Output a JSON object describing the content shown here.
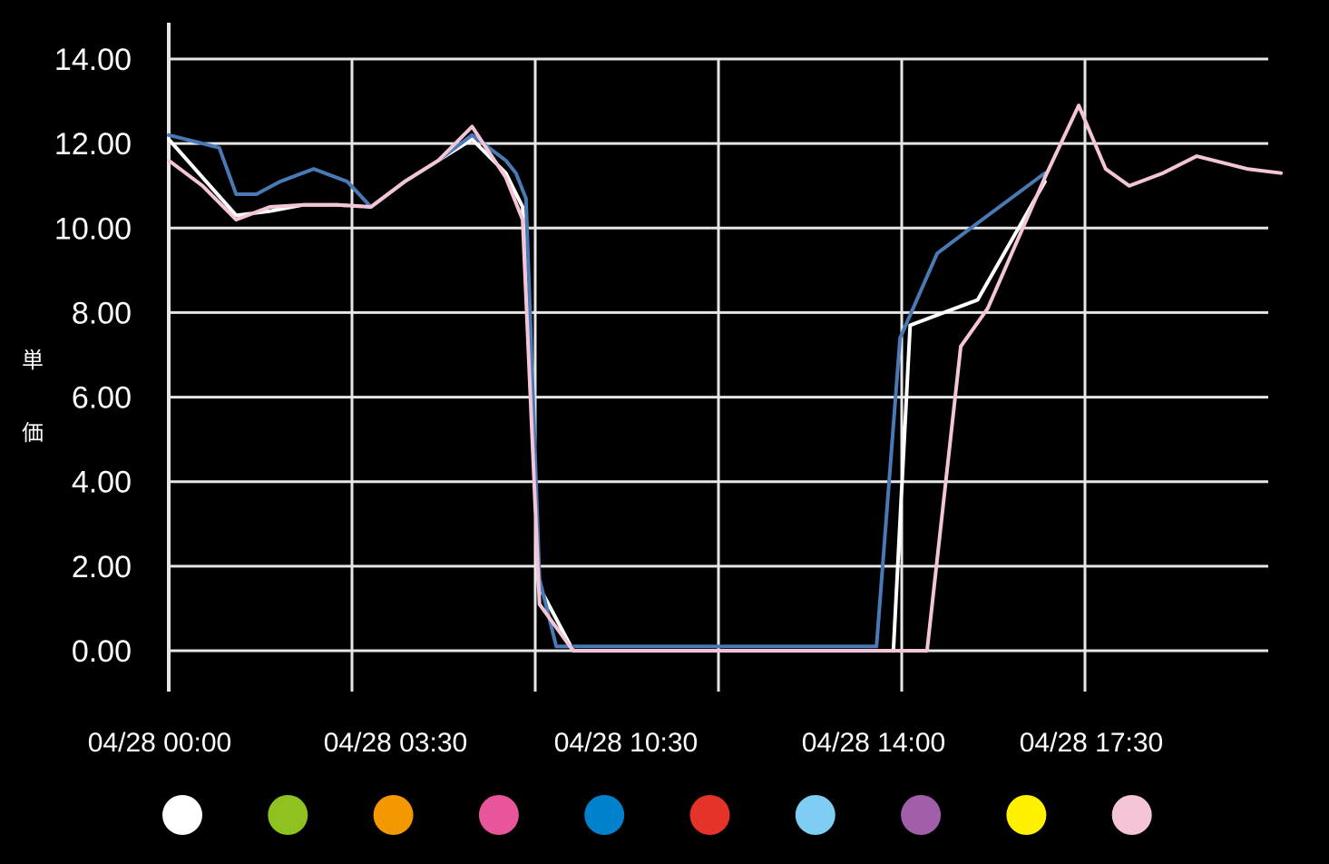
{
  "chart_data": {
    "type": "line",
    "title": "",
    "xlabel": "",
    "ylabel": "単価",
    "ylim": [
      0,
      14
    ],
    "yticks": [
      "0.00",
      "2.00",
      "4.00",
      "6.00",
      "8.00",
      "10.00",
      "12.00",
      "14.00"
    ],
    "grid": true,
    "xtick_labels": [
      "04/28 00:00",
      "04/28 03:30",
      "04/28 10:30",
      "04/28 14:00",
      "04/28 17:30"
    ],
    "legend_position": "bottom",
    "legend_colors": [
      "#ffffff",
      "#8dc21f",
      "#f39800",
      "#e9559a",
      "#0081cc",
      "#e6332a",
      "#7ecef4",
      "#a05fa8",
      "#fff100",
      "#f4c5d6"
    ],
    "series": [
      {
        "color": "#ffffff",
        "points": [
          [
            0,
            12.1
          ],
          [
            1,
            11.2
          ],
          [
            2,
            10.3
          ],
          [
            3,
            10.4
          ],
          [
            4,
            10.55
          ],
          [
            5,
            10.55
          ],
          [
            6,
            10.5
          ],
          [
            7,
            11.1
          ],
          [
            8,
            11.6
          ],
          [
            9,
            12.1
          ],
          [
            10,
            11.3
          ],
          [
            10.5,
            10.5
          ],
          [
            11,
            1.5
          ],
          [
            12,
            0
          ],
          [
            13,
            0
          ],
          [
            14,
            0
          ],
          [
            15,
            0
          ],
          [
            16,
            0
          ],
          [
            17,
            0
          ],
          [
            18,
            0
          ],
          [
            19,
            0
          ],
          [
            20,
            0
          ],
          [
            21,
            0
          ],
          [
            21.5,
            0
          ],
          [
            22,
            7.7
          ],
          [
            23,
            8.0
          ],
          [
            24,
            8.3
          ],
          [
            25,
            9.7
          ],
          [
            26,
            11.1
          ]
        ]
      },
      {
        "color": "#4a7ab5",
        "points": [
          [
            0,
            12.2
          ],
          [
            1,
            12.0
          ],
          [
            1.5,
            11.9
          ],
          [
            2,
            10.8
          ],
          [
            2.6,
            10.8
          ],
          [
            3.3,
            11.1
          ],
          [
            4.3,
            11.4
          ],
          [
            5.3,
            11.1
          ],
          [
            6,
            10.5
          ],
          [
            7,
            11.1
          ],
          [
            8,
            11.6
          ],
          [
            9,
            12.2
          ],
          [
            10,
            11.6
          ],
          [
            10.3,
            11.3
          ],
          [
            10.6,
            10.7
          ],
          [
            11,
            1.7
          ],
          [
            11.5,
            0.1
          ],
          [
            12,
            0.1
          ],
          [
            13,
            0.1
          ],
          [
            14,
            0.1
          ],
          [
            15,
            0.1
          ],
          [
            16,
            0.1
          ],
          [
            17,
            0.1
          ],
          [
            18,
            0.1
          ],
          [
            19,
            0.1
          ],
          [
            20,
            0.1
          ],
          [
            21,
            0.1
          ],
          [
            21.7,
            7.4
          ],
          [
            22.8,
            9.4
          ],
          [
            23.8,
            10.0
          ],
          [
            26,
            11.3
          ]
        ]
      },
      {
        "color": "#f4c5d6",
        "points": [
          [
            0,
            11.6
          ],
          [
            1,
            11.0
          ],
          [
            2,
            10.2
          ],
          [
            3,
            10.5
          ],
          [
            4,
            10.55
          ],
          [
            5,
            10.55
          ],
          [
            6,
            10.5
          ],
          [
            7,
            11.1
          ],
          [
            8,
            11.6
          ],
          [
            9,
            12.4
          ],
          [
            10,
            11.2
          ],
          [
            10.5,
            10.2
          ],
          [
            11,
            1.1
          ],
          [
            12,
            0
          ],
          [
            13,
            0
          ],
          [
            14,
            0
          ],
          [
            15,
            0
          ],
          [
            16,
            0
          ],
          [
            17,
            0
          ],
          [
            18,
            0
          ],
          [
            19,
            0
          ],
          [
            20,
            0
          ],
          [
            21,
            0
          ],
          [
            22,
            0
          ],
          [
            22.5,
            0
          ],
          [
            23.5,
            7.2
          ],
          [
            24.3,
            8.1
          ],
          [
            26,
            11.2
          ],
          [
            27,
            12.9
          ],
          [
            27.8,
            11.4
          ],
          [
            28.5,
            11.0
          ],
          [
            29.5,
            11.3
          ],
          [
            30.5,
            11.7
          ],
          [
            32,
            11.4
          ],
          [
            33,
            11.3
          ]
        ]
      }
    ]
  }
}
